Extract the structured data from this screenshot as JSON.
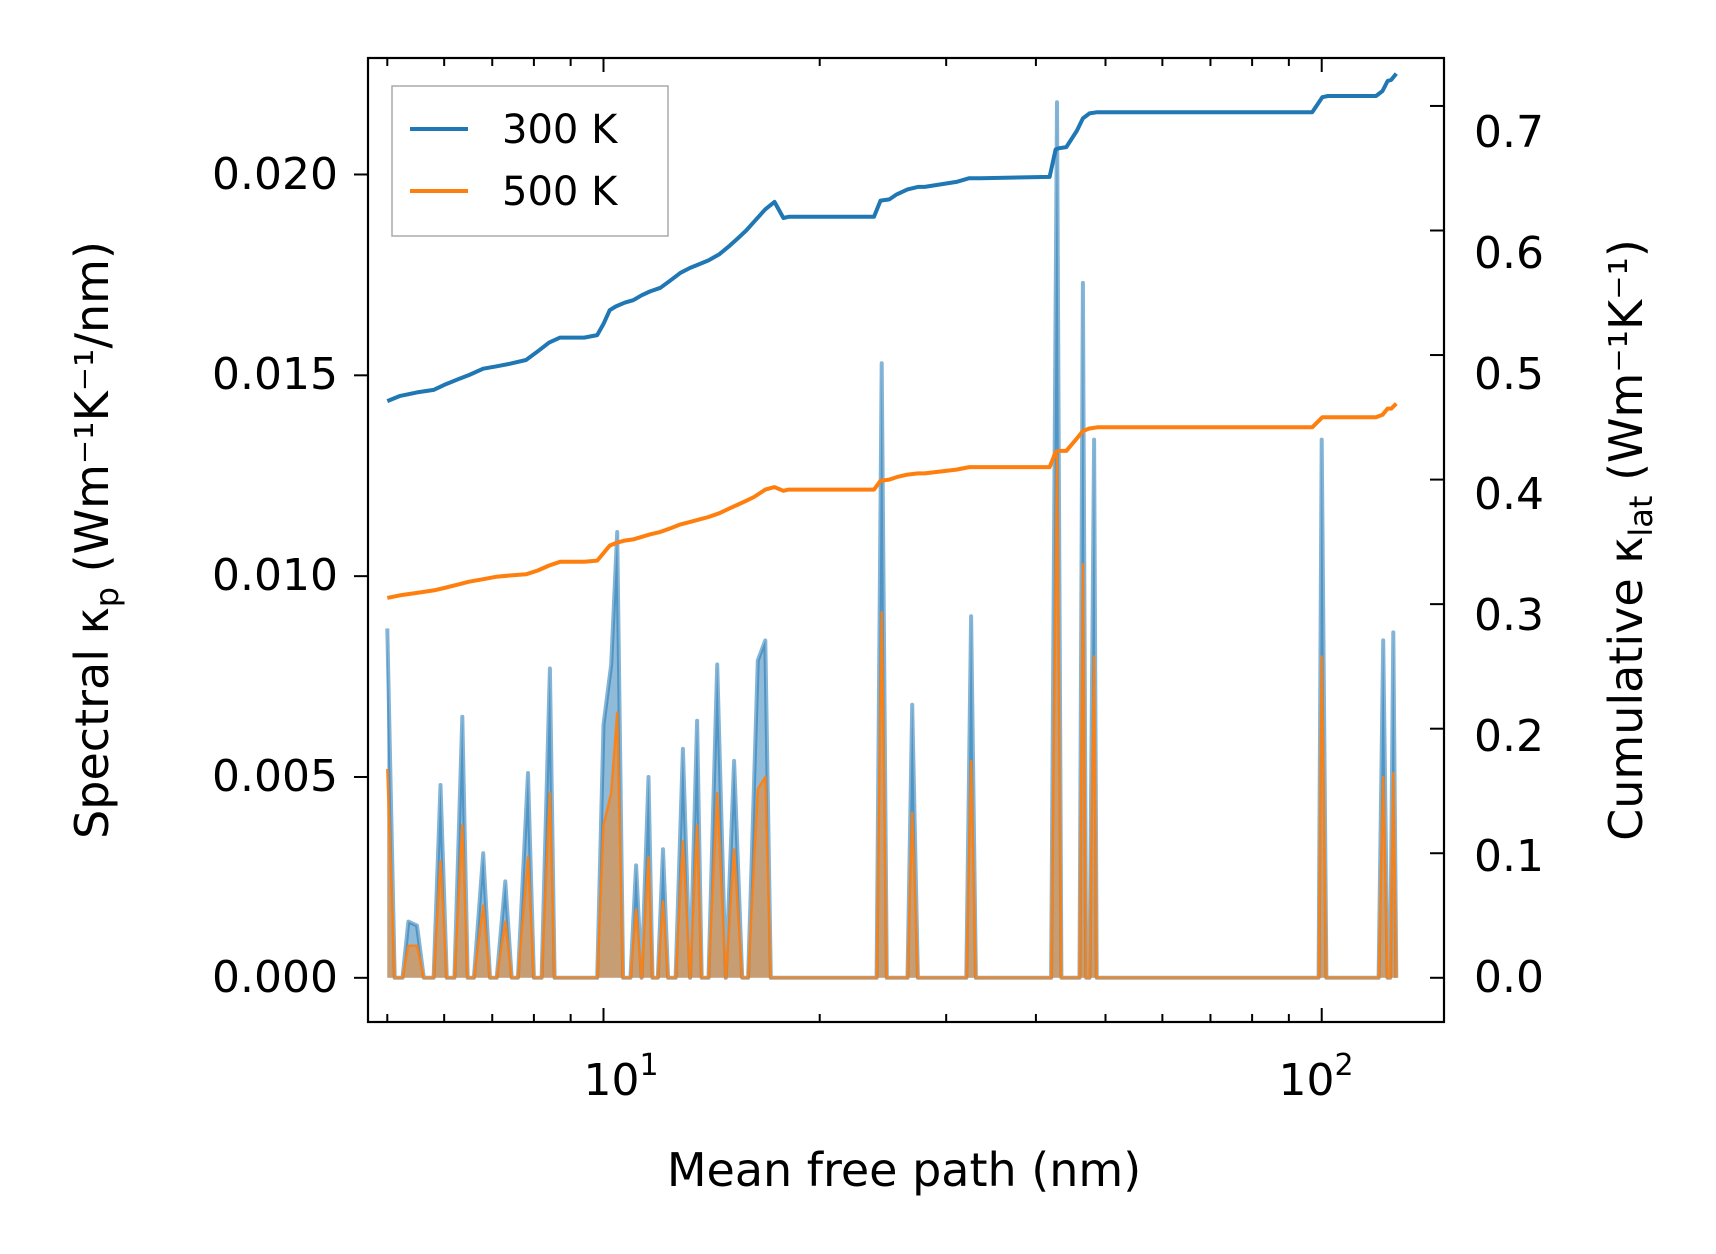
{
  "chart_data": {
    "type": "line",
    "xscale": "log",
    "xlim": [
      4.7,
      148
    ],
    "ylim_left": [
      -0.0011,
      0.0229
    ],
    "ylim_right": [
      -0.0355,
      0.7385
    ],
    "xlabel": "Mean free path (nm)",
    "ylabel_left_text": "Spectral κ",
    "ylabel_left_sub": "p",
    "ylabel_left_unit": " (Wm⁻¹K⁻¹/nm)",
    "ylabel_right_text": "Cumulative κ",
    "ylabel_right_sub": "lat",
    "ylabel_right_unit": " (Wm⁻¹K⁻¹)",
    "xticks_major": [
      {
        "value": 10,
        "base": "10",
        "exp": "1"
      },
      {
        "value": 100,
        "base": "10",
        "exp": "2"
      }
    ],
    "yticks_left": [
      "0.000",
      "0.005",
      "0.010",
      "0.015",
      "0.020"
    ],
    "yticks_left_values": [
      0,
      0.005,
      0.01,
      0.015,
      0.02
    ],
    "yticks_right": [
      "0.0",
      "0.1",
      "0.2",
      "0.3",
      "0.4",
      "0.5",
      "0.6",
      "0.7"
    ],
    "yticks_right_values": [
      0,
      0.1,
      0.2,
      0.3,
      0.4,
      0.5,
      0.6,
      0.7
    ],
    "legend": [
      {
        "label": "300 K",
        "color": "#1f77b4"
      },
      {
        "label": "500 K",
        "color": "#ff7f0e"
      }
    ],
    "legend_position": "top-left",
    "spectral_series": [
      {
        "name": "300 K",
        "color": "#1f77b4",
        "x": [
          5.0,
          5.12,
          5.25,
          5.35,
          5.5,
          5.62,
          5.8,
          5.93,
          6.05,
          6.2,
          6.36,
          6.47,
          6.6,
          6.8,
          6.95,
          7.1,
          7.3,
          7.45,
          7.6,
          7.85,
          8.0,
          8.2,
          8.42,
          8.55,
          8.8,
          9.8,
          10.0,
          10.25,
          10.45,
          10.65,
          10.9,
          11.1,
          11.3,
          11.55,
          11.7,
          11.9,
          12.1,
          12.3,
          12.6,
          12.9,
          13.2,
          13.5,
          13.7,
          14.0,
          14.4,
          14.8,
          15.2,
          15.6,
          15.9,
          16.4,
          16.8,
          17.1,
          17.5,
          18.0,
          24.0,
          24.4,
          24.8,
          25.2,
          26.5,
          26.9,
          27.4,
          28.5,
          32.0,
          32.5,
          33.0,
          33.8,
          42.0,
          42.8,
          43.4,
          44.0,
          46.0,
          46.5,
          47.0,
          47.5,
          48.2,
          48.6,
          49.1,
          50.0,
          97.0,
          99.0,
          100.0,
          101.5,
          103.0,
          120.0,
          121.8,
          123.5,
          124.5,
          125.8,
          127.0
        ],
        "y": [
          0.0087,
          0.0,
          0.0,
          0.0014,
          0.0013,
          0.0,
          0.0,
          0.0048,
          0.0,
          0.0,
          0.0065,
          0.0,
          0.0,
          0.0031,
          0.0,
          0.0,
          0.0024,
          0.0,
          0.0,
          0.0051,
          0.0,
          0.0,
          0.0077,
          0.0,
          0.0,
          0.0,
          0.0063,
          0.0078,
          0.0111,
          0.0,
          0.0,
          0.0028,
          0.0,
          0.005,
          0.0,
          0.0,
          0.0032,
          0.0,
          0.0,
          0.0057,
          0.0,
          0.0064,
          0.0,
          0.0,
          0.0078,
          0.0,
          0.0054,
          0.0,
          0.0,
          0.0079,
          0.0084,
          0.0,
          0.0,
          0.0,
          0.0,
          0.0153,
          0.0,
          0.0,
          0.0,
          0.0068,
          0.0,
          0.0,
          0.0,
          0.009,
          0.0,
          0.0,
          0.0,
          0.0218,
          0.0,
          0.0,
          0.0,
          0.0173,
          0.0,
          0.0,
          0.0134,
          0.0,
          0.0,
          0.0,
          0.0,
          0.0,
          0.0134,
          0.0,
          0.0,
          0.0,
          0.0084,
          0.0,
          0.0,
          0.0086,
          0.0
        ]
      },
      {
        "name": "500 K",
        "color": "#ff7f0e",
        "x": [
          5.0,
          5.12,
          5.25,
          5.35,
          5.5,
          5.62,
          5.8,
          5.93,
          6.05,
          6.2,
          6.36,
          6.47,
          6.6,
          6.8,
          6.95,
          7.1,
          7.3,
          7.45,
          7.6,
          7.85,
          8.0,
          8.2,
          8.42,
          8.55,
          8.8,
          9.8,
          10.0,
          10.25,
          10.45,
          10.65,
          10.9,
          11.1,
          11.3,
          11.55,
          11.7,
          11.9,
          12.1,
          12.3,
          12.6,
          12.9,
          13.2,
          13.5,
          13.7,
          14.0,
          14.4,
          14.8,
          15.2,
          15.6,
          15.9,
          16.4,
          16.8,
          17.1,
          17.5,
          18.0,
          24.0,
          24.4,
          24.8,
          25.2,
          26.5,
          26.9,
          27.4,
          28.5,
          32.0,
          32.5,
          33.0,
          33.8,
          42.0,
          42.8,
          43.4,
          44.0,
          46.0,
          46.5,
          47.0,
          47.5,
          48.2,
          48.6,
          49.1,
          50.0,
          97.0,
          99.0,
          100.0,
          101.5,
          103.0,
          120.0,
          121.8,
          123.5,
          124.5,
          125.8,
          127.0
        ],
        "y": [
          0.0052,
          0.0,
          0.0,
          0.0008,
          0.0008,
          0.0,
          0.0,
          0.0029,
          0.0,
          0.0,
          0.0038,
          0.0,
          0.0,
          0.0018,
          0.0,
          0.0,
          0.0014,
          0.0,
          0.0,
          0.003,
          0.0,
          0.0,
          0.0046,
          0.0,
          0.0,
          0.0,
          0.0038,
          0.0046,
          0.0066,
          0.0,
          0.0,
          0.0017,
          0.0,
          0.003,
          0.0,
          0.0,
          0.0019,
          0.0,
          0.0,
          0.0034,
          0.0,
          0.0038,
          0.0,
          0.0,
          0.0046,
          0.0,
          0.0032,
          0.0,
          0.0,
          0.0047,
          0.005,
          0.0,
          0.0,
          0.0,
          0.0,
          0.0091,
          0.0,
          0.0,
          0.0,
          0.0041,
          0.0,
          0.0,
          0.0,
          0.0054,
          0.0,
          0.0,
          0.0,
          0.013,
          0.0,
          0.0,
          0.0,
          0.0103,
          0.0,
          0.0,
          0.008,
          0.0,
          0.0,
          0.0,
          0.0,
          0.0,
          0.008,
          0.0,
          0.0,
          0.0,
          0.005,
          0.0,
          0.0,
          0.0051,
          0.0
        ]
      }
    ],
    "cumulative_series": [
      {
        "name": "300 K",
        "color": "#1f77b4",
        "x": [
          5.0,
          5.2,
          5.5,
          5.8,
          6.0,
          6.3,
          6.5,
          6.8,
          7.1,
          7.4,
          7.8,
          8.1,
          8.4,
          8.7,
          9.4,
          9.8,
          10.0,
          10.2,
          10.4,
          10.7,
          11.0,
          11.3,
          11.6,
          12.0,
          12.4,
          12.8,
          13.2,
          13.6,
          14.0,
          14.5,
          15.0,
          15.4,
          15.8,
          16.2,
          16.8,
          17.3,
          17.8,
          18.1,
          20.0,
          23.8,
          24.3,
          25.0,
          25.6,
          26.5,
          27.4,
          28.0,
          31.0,
          32.3,
          33.5,
          41.8,
          42.6,
          43.0,
          44.1,
          45.6,
          46.5,
          47.5,
          48.7,
          58.0,
          97.0,
          100.2,
          102.0,
          119.0,
          121.5,
          123.5,
          125.0,
          127.0
        ],
        "y": [
          0.463,
          0.467,
          0.47,
          0.472,
          0.476,
          0.481,
          0.484,
          0.489,
          0.491,
          0.493,
          0.496,
          0.503,
          0.51,
          0.514,
          0.514,
          0.516,
          0.525,
          0.536,
          0.539,
          0.542,
          0.544,
          0.548,
          0.551,
          0.554,
          0.56,
          0.566,
          0.57,
          0.573,
          0.576,
          0.581,
          0.588,
          0.594,
          0.6,
          0.607,
          0.617,
          0.623,
          0.61,
          0.611,
          0.611,
          0.611,
          0.624,
          0.625,
          0.629,
          0.633,
          0.635,
          0.635,
          0.639,
          0.642,
          0.642,
          0.643,
          0.665,
          0.666,
          0.667,
          0.68,
          0.69,
          0.694,
          0.695,
          0.695,
          0.695,
          0.707,
          0.708,
          0.708,
          0.712,
          0.72,
          0.721,
          0.726
        ]
      },
      {
        "name": "500 K",
        "color": "#ff7f0e",
        "x": [
          5.0,
          5.2,
          5.5,
          5.8,
          6.0,
          6.3,
          6.5,
          6.8,
          7.1,
          7.4,
          7.8,
          8.1,
          8.4,
          8.7,
          9.4,
          9.8,
          10.0,
          10.2,
          10.4,
          10.7,
          11.0,
          11.3,
          11.6,
          12.0,
          12.4,
          12.8,
          13.2,
          13.6,
          14.0,
          14.5,
          15.0,
          15.4,
          15.8,
          16.2,
          16.8,
          17.3,
          17.8,
          18.1,
          20.0,
          23.8,
          24.3,
          25.0,
          25.6,
          26.5,
          27.4,
          28.0,
          31.0,
          32.3,
          33.5,
          41.8,
          42.6,
          43.0,
          44.1,
          45.6,
          46.5,
          47.5,
          48.7,
          58.0,
          97.0,
          100.2,
          102.0,
          119.0,
          121.5,
          123.5,
          125.0,
          127.0
        ],
        "y": [
          0.305,
          0.307,
          0.309,
          0.311,
          0.313,
          0.316,
          0.318,
          0.32,
          0.322,
          0.323,
          0.324,
          0.327,
          0.331,
          0.334,
          0.334,
          0.335,
          0.341,
          0.347,
          0.349,
          0.351,
          0.352,
          0.354,
          0.356,
          0.358,
          0.361,
          0.364,
          0.366,
          0.368,
          0.37,
          0.373,
          0.377,
          0.38,
          0.383,
          0.386,
          0.392,
          0.394,
          0.391,
          0.392,
          0.392,
          0.392,
          0.399,
          0.4,
          0.402,
          0.404,
          0.405,
          0.405,
          0.408,
          0.41,
          0.41,
          0.41,
          0.422,
          0.423,
          0.423,
          0.433,
          0.439,
          0.441,
          0.442,
          0.442,
          0.442,
          0.45,
          0.45,
          0.45,
          0.452,
          0.457,
          0.457,
          0.461
        ]
      }
    ]
  }
}
